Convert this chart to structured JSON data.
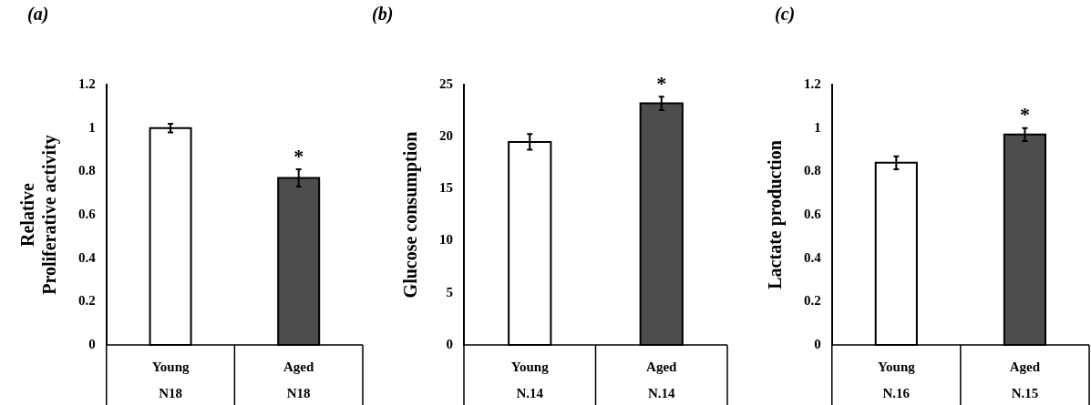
{
  "chart_data": [
    {
      "type": "bar",
      "title": "(a)",
      "ylabel": "Relative Proliferative activity",
      "categories": [
        "Young",
        "Aged"
      ],
      "values": [
        1.0,
        0.77
      ],
      "errors": [
        0.02,
        0.04
      ],
      "colors": [
        "#ffffff",
        "#4d4d4d"
      ],
      "ylim": [
        0,
        1.2
      ],
      "yticks": [
        0,
        0.2,
        0.4,
        0.6,
        0.8,
        1,
        1.2
      ],
      "grid": false,
      "legend": false,
      "annotations": [
        "*",
        "N18",
        "N18"
      ]
    },
    {
      "type": "bar",
      "title": "(b)",
      "ylabel": "Glucose consumption",
      "categories": [
        "Young",
        "Aged"
      ],
      "values": [
        19.5,
        23.2
      ],
      "errors": [
        0.75,
        0.65
      ],
      "colors": [
        "#ffffff",
        "#4d4d4d"
      ],
      "ylim": [
        0,
        25
      ],
      "yticks": [
        0,
        5,
        10,
        15,
        20,
        25
      ],
      "grid": false,
      "legend": false,
      "annotations": [
        "*",
        "N.14",
        "N.14"
      ]
    },
    {
      "type": "bar",
      "title": "(c)",
      "ylabel": "Lactate production",
      "categories": [
        "Young",
        "Aged"
      ],
      "values": [
        0.84,
        0.97
      ],
      "errors": [
        0.03,
        0.03
      ],
      "colors": [
        "#ffffff",
        "#4d4d4d"
      ],
      "ylim": [
        0,
        1.2
      ],
      "yticks": [
        0,
        0.2,
        0.4,
        0.6,
        0.8,
        1,
        1.2
      ],
      "grid": false,
      "legend": false,
      "annotations": [
        "*",
        "N.16",
        "N.15"
      ]
    }
  ]
}
